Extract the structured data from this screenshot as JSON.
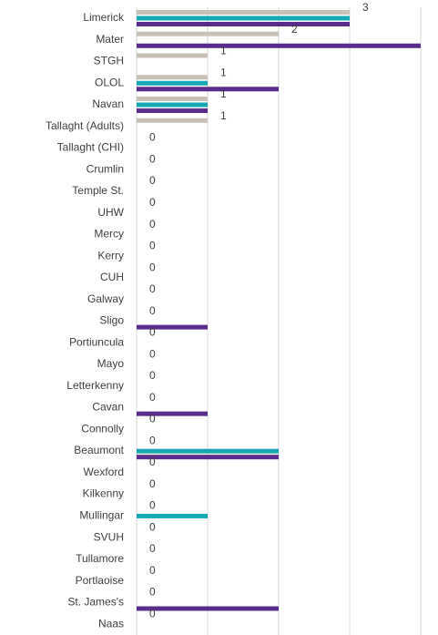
{
  "chart_data": {
    "type": "bar",
    "orientation": "horizontal",
    "categories": [
      "Limerick",
      "Mater",
      "STGH",
      "OLOL",
      "Navan",
      "Tallaght (Adults)",
      "Tallaght (CHI)",
      "Crumlin",
      "Temple St.",
      "UHW",
      "Mercy",
      "Kerry",
      "CUH",
      "Galway",
      "Sligo",
      "Portiuncula",
      "Mayo",
      "Letterkenny",
      "Cavan",
      "Connolly",
      "Beaumont",
      "Wexford",
      "Kilkenny",
      "Mullingar",
      "SVUH",
      "Tullamore",
      "Portlaoise",
      "St. James's",
      "Naas"
    ],
    "series": [
      {
        "color": "#c9c1b7",
        "labels": true,
        "values": [
          3,
          2,
          1,
          1,
          1,
          1,
          0,
          0,
          0,
          0,
          0,
          0,
          0,
          0,
          0,
          0,
          0,
          0,
          0,
          0,
          0,
          0,
          0,
          0,
          0,
          0,
          0,
          0,
          0
        ]
      },
      {
        "color": "#17a8b6",
        "labels": false,
        "values": [
          3,
          0,
          0,
          1,
          1,
          0,
          0,
          0,
          0,
          0,
          0,
          0,
          0,
          0,
          0,
          0,
          0,
          0,
          0,
          0,
          2,
          0,
          0,
          1,
          0,
          0,
          0,
          0,
          0
        ]
      },
      {
        "color": "#5a2d8c",
        "labels": false,
        "values": [
          3,
          4,
          0,
          2,
          1,
          0,
          0,
          0,
          0,
          0,
          0,
          0,
          0,
          0,
          1,
          0,
          0,
          0,
          1,
          0,
          2,
          0,
          0,
          0,
          0,
          0,
          0,
          2,
          0
        ]
      }
    ],
    "xlim": [
      0,
      4
    ],
    "xticks": [
      0,
      1,
      2,
      3,
      4
    ],
    "grid": true
  }
}
